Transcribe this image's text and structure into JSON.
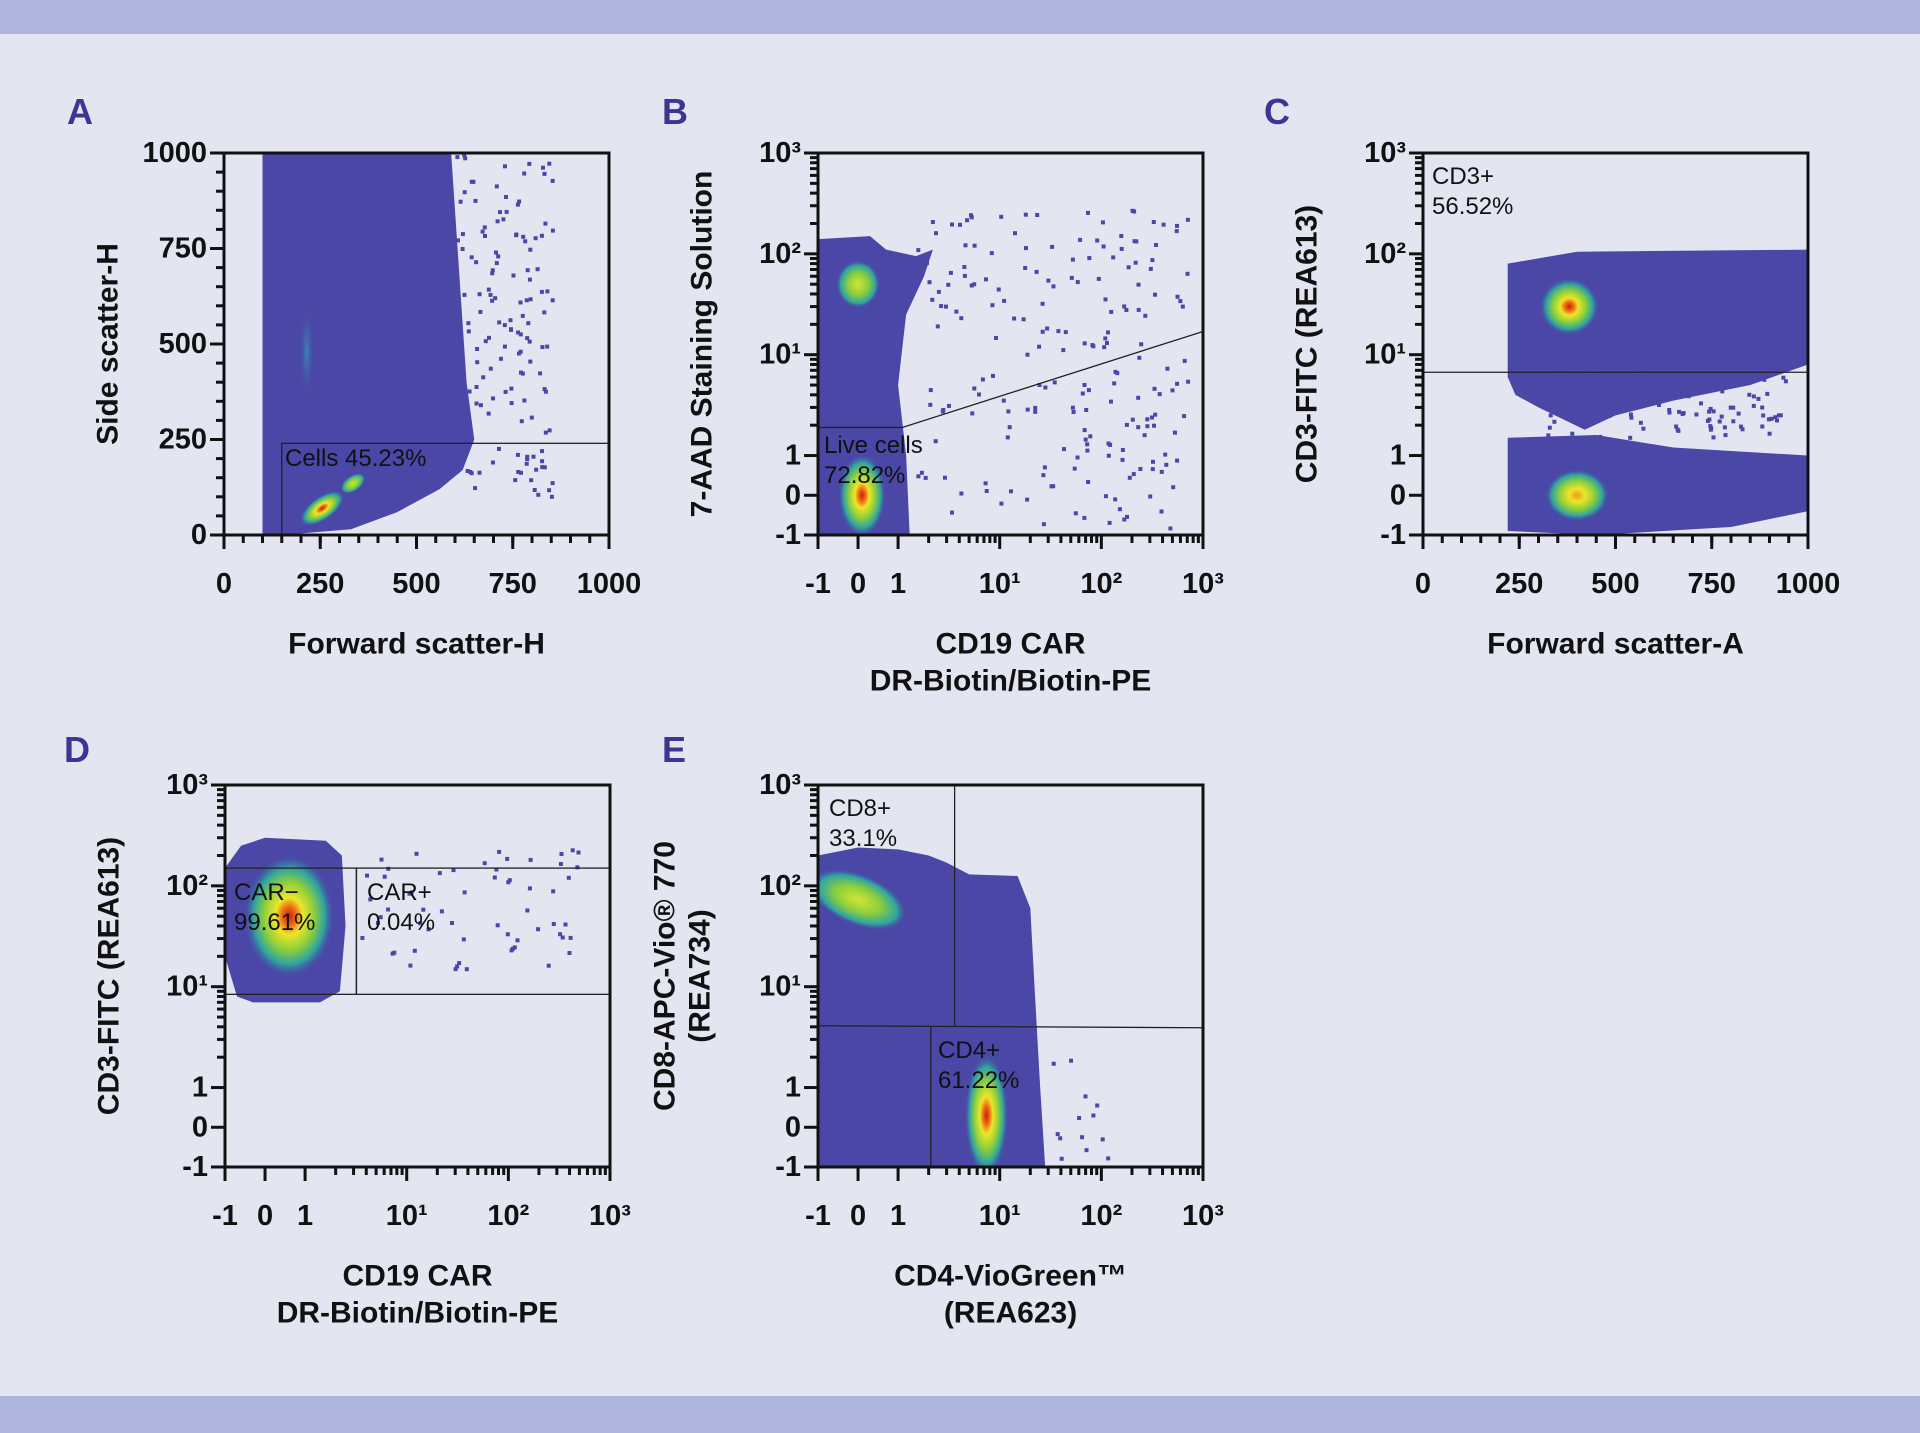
{
  "figure": {
    "background": "#e3e6f1",
    "band_color": "#afb5dc",
    "letter_color": "#3e3494",
    "density_base_color": "#4a47a6"
  },
  "chart_data": [
    {
      "panel": "A",
      "type": "scatter",
      "subtype": "density",
      "grid": false,
      "x_axis": {
        "title": [
          "Forward scatter-H"
        ],
        "scale": "linear",
        "range": [
          0,
          1000
        ],
        "ticks": [
          {
            "value": 0,
            "label": "0"
          },
          {
            "value": 250,
            "label": "250"
          },
          {
            "value": 500,
            "label": "500"
          },
          {
            "value": 750,
            "label": "750"
          },
          {
            "value": 1000,
            "label": "1000"
          }
        ]
      },
      "y_axis": {
        "title": [
          "Side scatter-H"
        ],
        "scale": "linear",
        "range": [
          0,
          1000
        ],
        "ticks": [
          {
            "value": 0,
            "label": "0"
          },
          {
            "value": 250,
            "label": "250"
          },
          {
            "value": 500,
            "label": "500"
          },
          {
            "value": 750,
            "label": "750"
          },
          {
            "value": 1000,
            "label": "1000"
          }
        ]
      },
      "regions": [
        [
          [
            100,
            0
          ],
          [
            100,
            1000
          ],
          [
            590,
            1000
          ],
          [
            610,
            700
          ],
          [
            630,
            400
          ],
          [
            650,
            250
          ],
          [
            620,
            170
          ],
          [
            560,
            120
          ],
          [
            450,
            60
          ],
          [
            330,
            15
          ],
          [
            150,
            0
          ]
        ]
      ],
      "populations": [
        {
          "center": [
            255,
            70
          ],
          "peak": "red"
        },
        {
          "center": [
            335,
            135
          ],
          "peak": "green"
        },
        {
          "center": [
            215,
            480
          ],
          "peak": "faint"
        }
      ],
      "sparse_events": [
        {
          "x": [
            600,
            850
          ],
          "y": [
            100,
            1000
          ],
          "count": 140
        }
      ],
      "gates": [
        {
          "shape": "rect",
          "x": [
            150,
            1000
          ],
          "y": [
            0,
            240
          ],
          "label": [
            "Cells 45.23%"
          ],
          "percent": 45.23
        }
      ]
    },
    {
      "panel": "B",
      "type": "scatter",
      "subtype": "density",
      "grid": false,
      "x_axis": {
        "title": [
          "CD19 CAR",
          "DR-Biotin/Biotin-PE"
        ],
        "scale": "biexponential",
        "range": [
          -1,
          1000
        ],
        "ticks": [
          {
            "value": -1,
            "label": "-1"
          },
          {
            "value": 0,
            "label": "0"
          },
          {
            "value": 1,
            "label": "1"
          },
          {
            "value": 10,
            "label": "10¹"
          },
          {
            "value": 100,
            "label": "10²"
          },
          {
            "value": 1000,
            "label": "10³"
          }
        ]
      },
      "y_axis": {
        "title": [
          "7-AAD Staining Solution"
        ],
        "scale": "biexponential",
        "range": [
          -1,
          1000
        ],
        "ticks": [
          {
            "value": -1,
            "label": "-1"
          },
          {
            "value": 0,
            "label": "0"
          },
          {
            "value": 1,
            "label": "1"
          },
          {
            "value": 10,
            "label": "10¹"
          },
          {
            "value": 100,
            "label": "10²"
          },
          {
            "value": 1000,
            "label": "10³"
          }
        ]
      },
      "regions": [
        [
          [
            -1,
            -1
          ],
          [
            -1,
            140
          ],
          [
            0.3,
            150
          ],
          [
            0.7,
            110
          ],
          [
            1.5,
            95
          ],
          [
            2.2,
            110
          ],
          [
            1.8,
            60
          ],
          [
            1.2,
            25
          ],
          [
            1.0,
            5
          ],
          [
            1.2,
            1
          ],
          [
            1.3,
            -1
          ]
        ]
      ],
      "populations": [
        {
          "center": [
            0,
            50
          ],
          "peak": "green"
        },
        {
          "center": [
            0.1,
            0
          ],
          "peak": "red"
        }
      ],
      "sparse_events": [
        {
          "x": [
            1.5,
            700
          ],
          "y": [
            -0.8,
            300
          ],
          "count": 200
        }
      ],
      "gates": [
        {
          "shape": "polygon",
          "points": [
            [
              -1,
              -1
            ],
            [
              -1,
              1.9
            ],
            [
              1.1,
              1.9
            ],
            [
              1000,
              17
            ],
            [
              1000,
              -1
            ]
          ],
          "label": [
            "Live cells",
            "72.82%"
          ],
          "percent": 72.82
        }
      ]
    },
    {
      "panel": "C",
      "type": "scatter",
      "subtype": "density",
      "grid": false,
      "x_axis": {
        "title": [
          "Forward scatter-A"
        ],
        "scale": "linear",
        "range": [
          0,
          1000
        ],
        "ticks": [
          {
            "value": 0,
            "label": "0"
          },
          {
            "value": 250,
            "label": "250"
          },
          {
            "value": 500,
            "label": "500"
          },
          {
            "value": 750,
            "label": "750"
          },
          {
            "value": 1000,
            "label": "1000"
          }
        ]
      },
      "y_axis": {
        "title": [
          "CD3-FITC (REA613)"
        ],
        "scale": "biexponential",
        "range": [
          -1,
          1000
        ],
        "ticks": [
          {
            "value": -1,
            "label": "-1"
          },
          {
            "value": 0,
            "label": "0"
          },
          {
            "value": 1,
            "label": "1"
          },
          {
            "value": 10,
            "label": "10¹"
          },
          {
            "value": 100,
            "label": "10²"
          },
          {
            "value": 1000,
            "label": "10³"
          }
        ]
      },
      "regions": [
        [
          [
            220,
            6
          ],
          [
            220,
            80
          ],
          [
            400,
            105
          ],
          [
            1000,
            110
          ],
          [
            1000,
            8
          ],
          [
            850,
            5
          ],
          [
            650,
            3.5
          ],
          [
            500,
            2.5
          ],
          [
            420,
            1.8
          ],
          [
            300,
            3
          ],
          [
            240,
            4
          ]
        ],
        [
          [
            220,
            -0.9
          ],
          [
            220,
            1.5
          ],
          [
            450,
            1.6
          ],
          [
            650,
            1.2
          ],
          [
            1000,
            1
          ],
          [
            1000,
            -0.4
          ],
          [
            800,
            -0.8
          ],
          [
            450,
            -1
          ]
        ]
      ],
      "populations": [
        {
          "center": [
            380,
            30
          ],
          "peak": "red"
        },
        {
          "center": [
            400,
            0
          ],
          "peak": "orange"
        }
      ],
      "sparse_events": [
        {
          "x": [
            300,
            950
          ],
          "y": [
            1.5,
            8
          ],
          "count": 120
        }
      ],
      "gates": [
        {
          "shape": "hline",
          "y": 6.7,
          "x": [
            0,
            1000
          ],
          "label": [
            "CD3+",
            "56.52%"
          ],
          "percent": 56.52
        }
      ]
    },
    {
      "panel": "D",
      "type": "scatter",
      "subtype": "density",
      "grid": false,
      "x_axis": {
        "title": [
          "CD19 CAR",
          "DR-Biotin/Biotin-PE"
        ],
        "scale": "biexponential",
        "range": [
          -1,
          1000
        ],
        "ticks": [
          {
            "value": -1,
            "label": "-1"
          },
          {
            "value": 0,
            "label": "0"
          },
          {
            "value": 1,
            "label": "1"
          },
          {
            "value": 10,
            "label": "10¹"
          },
          {
            "value": 100,
            "label": "10²"
          },
          {
            "value": 1000,
            "label": "10³"
          }
        ]
      },
      "y_axis": {
        "title": [
          "CD3-FITC (REA613)"
        ],
        "scale": "biexponential",
        "range": [
          -1,
          1000
        ],
        "ticks": [
          {
            "value": -1,
            "label": "-1"
          },
          {
            "value": 0,
            "label": "0"
          },
          {
            "value": 1,
            "label": "1"
          },
          {
            "value": 10,
            "label": "10¹"
          },
          {
            "value": 100,
            "label": "10²"
          },
          {
            "value": 1000,
            "label": "10³"
          }
        ]
      },
      "regions": [
        [
          [
            -0.7,
            8
          ],
          [
            -1,
            20
          ],
          [
            -1,
            150
          ],
          [
            -0.6,
            250
          ],
          [
            0,
            300
          ],
          [
            1.6,
            280
          ],
          [
            2.3,
            200
          ],
          [
            2.5,
            40
          ],
          [
            2.2,
            9
          ],
          [
            1.4,
            7
          ],
          [
            -0.3,
            7
          ]
        ]
      ],
      "populations": [
        {
          "center": [
            0.6,
            50
          ],
          "peak": "red"
        }
      ],
      "sparse_events": [
        {
          "x": [
            3.5,
            600
          ],
          "y": [
            15,
            250
          ],
          "count": 60
        }
      ],
      "gates": [
        {
          "shape": "rect",
          "x": [
            -1,
            3.2
          ],
          "y": [
            8.4,
            150
          ],
          "label": [
            "CAR−",
            "99.61%"
          ],
          "percent": 99.61
        },
        {
          "shape": "rect",
          "x": [
            3.2,
            1000
          ],
          "y": [
            8.4,
            150
          ],
          "label": [
            "CAR+",
            "0.04%"
          ],
          "percent": 0.04
        }
      ]
    },
    {
      "panel": "E",
      "type": "scatter",
      "subtype": "density",
      "grid": false,
      "x_axis": {
        "title": [
          "CD4-VioGreen™",
          "(REA623)"
        ],
        "scale": "biexponential",
        "range": [
          -1,
          1000
        ],
        "ticks": [
          {
            "value": -1,
            "label": "-1"
          },
          {
            "value": 0,
            "label": "0"
          },
          {
            "value": 1,
            "label": "1"
          },
          {
            "value": 10,
            "label": "10¹"
          },
          {
            "value": 100,
            "label": "10²"
          },
          {
            "value": 1000,
            "label": "10³"
          }
        ]
      },
      "y_axis": {
        "title": [
          "CD8-APC-Vio® 770",
          "(REA734)"
        ],
        "scale": "biexponential",
        "range": [
          -1,
          1000
        ],
        "ticks": [
          {
            "value": -1,
            "label": "-1"
          },
          {
            "value": 0,
            "label": "0"
          },
          {
            "value": 1,
            "label": "1"
          },
          {
            "value": 10,
            "label": "10¹"
          },
          {
            "value": 100,
            "label": "10²"
          },
          {
            "value": 1000,
            "label": "10³"
          }
        ]
      },
      "regions": [
        [
          [
            -1,
            -1
          ],
          [
            -1,
            200
          ],
          [
            0,
            240
          ],
          [
            1,
            230
          ],
          [
            2,
            200
          ],
          [
            3,
            170
          ],
          [
            5,
            130
          ],
          [
            15,
            125
          ],
          [
            20,
            60
          ],
          [
            22,
            10
          ],
          [
            25,
            1
          ],
          [
            28,
            -1
          ]
        ]
      ],
      "populations": [
        {
          "center": [
            0,
            73
          ],
          "peak": "green"
        },
        {
          "center": [
            7.4,
            0.3
          ],
          "peak": "red"
        }
      ],
      "sparse_events": [
        {
          "x": [
            20,
            120
          ],
          "y": [
            -1,
            2
          ],
          "count": 15
        }
      ],
      "gates": [
        {
          "shape": "quadrant",
          "x_upper": 3.6,
          "x_lower": 2.1,
          "y": 4.1,
          "label": [
            "CD8+",
            "33.1%"
          ],
          "percent": 33.1
        },
        {
          "shape": "quadrant-label",
          "label": [
            "CD4+",
            "61.22%"
          ],
          "percent": 61.22
        }
      ]
    }
  ]
}
